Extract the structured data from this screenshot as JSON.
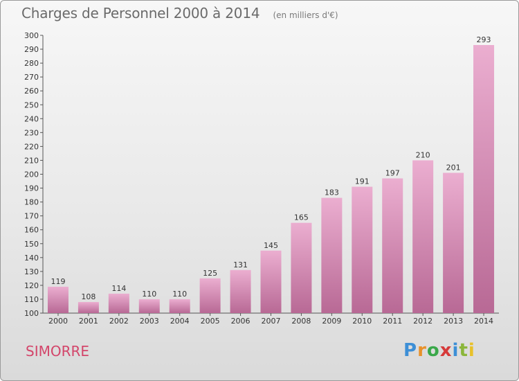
{
  "header": {
    "title": "Charges de Personnel 2000 à 2014",
    "unit": "(en milliers d'€)"
  },
  "footer": {
    "commune": "SIMORRE",
    "logo": "Proxiti"
  },
  "colors": {
    "bar_light": "#ebaed0",
    "bar_dark": "#b86995",
    "commune": "#d3456a"
  },
  "chart_data": {
    "type": "bar",
    "title": "Charges de Personnel 2000 à 2014",
    "subtitle": "(en milliers d'€)",
    "xlabel": "",
    "ylabel": "",
    "categories": [
      "2000",
      "2001",
      "2002",
      "2003",
      "2004",
      "2005",
      "2006",
      "2007",
      "2008",
      "2009",
      "2010",
      "2011",
      "2012",
      "2013",
      "2014"
    ],
    "values": [
      119,
      108,
      114,
      110,
      110,
      125,
      131,
      145,
      165,
      183,
      191,
      197,
      210,
      201,
      293
    ],
    "ylim": [
      100,
      300
    ],
    "yticks": [
      100,
      110,
      120,
      130,
      140,
      150,
      160,
      170,
      180,
      190,
      200,
      210,
      220,
      230,
      240,
      250,
      260,
      270,
      280,
      290,
      300
    ],
    "grid": false,
    "data_labels": true
  }
}
